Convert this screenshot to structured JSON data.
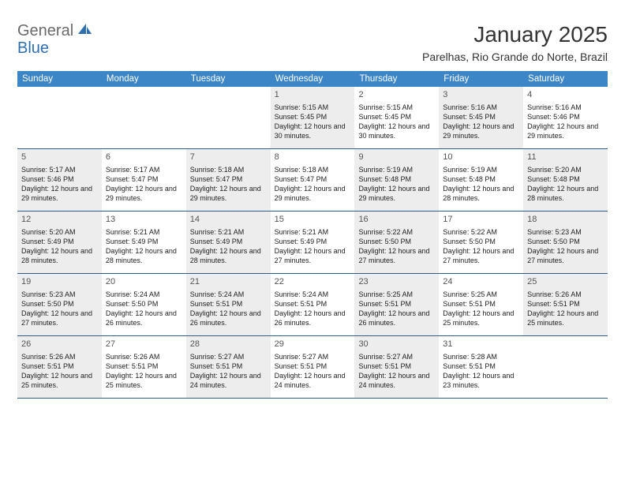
{
  "logo": {
    "part1": "General",
    "part2": "Blue"
  },
  "title": "January 2025",
  "location": "Parelhas, Rio Grande do Norte, Brazil",
  "colors": {
    "header_bg": "#3c85c6",
    "header_text": "#ffffff",
    "row_border": "#2f5b85",
    "shaded_bg": "#ededed",
    "logo_gray": "#6a6a6a",
    "logo_blue": "#2f6fb0"
  },
  "day_names": [
    "Sunday",
    "Monday",
    "Tuesday",
    "Wednesday",
    "Thursday",
    "Friday",
    "Saturday"
  ],
  "weeks": [
    [
      {
        "num": "",
        "shaded": false,
        "lines": []
      },
      {
        "num": "",
        "shaded": false,
        "lines": []
      },
      {
        "num": "",
        "shaded": false,
        "lines": []
      },
      {
        "num": "1",
        "shaded": true,
        "lines": [
          "Sunrise: 5:15 AM",
          "Sunset: 5:45 PM",
          "Daylight: 12 hours and 30 minutes."
        ]
      },
      {
        "num": "2",
        "shaded": false,
        "lines": [
          "Sunrise: 5:15 AM",
          "Sunset: 5:45 PM",
          "Daylight: 12 hours and 30 minutes."
        ]
      },
      {
        "num": "3",
        "shaded": true,
        "lines": [
          "Sunrise: 5:16 AM",
          "Sunset: 5:45 PM",
          "Daylight: 12 hours and 29 minutes."
        ]
      },
      {
        "num": "4",
        "shaded": false,
        "lines": [
          "Sunrise: 5:16 AM",
          "Sunset: 5:46 PM",
          "Daylight: 12 hours and 29 minutes."
        ]
      }
    ],
    [
      {
        "num": "5",
        "shaded": true,
        "lines": [
          "Sunrise: 5:17 AM",
          "Sunset: 5:46 PM",
          "Daylight: 12 hours and 29 minutes."
        ]
      },
      {
        "num": "6",
        "shaded": false,
        "lines": [
          "Sunrise: 5:17 AM",
          "Sunset: 5:47 PM",
          "Daylight: 12 hours and 29 minutes."
        ]
      },
      {
        "num": "7",
        "shaded": true,
        "lines": [
          "Sunrise: 5:18 AM",
          "Sunset: 5:47 PM",
          "Daylight: 12 hours and 29 minutes."
        ]
      },
      {
        "num": "8",
        "shaded": false,
        "lines": [
          "Sunrise: 5:18 AM",
          "Sunset: 5:47 PM",
          "Daylight: 12 hours and 29 minutes."
        ]
      },
      {
        "num": "9",
        "shaded": true,
        "lines": [
          "Sunrise: 5:19 AM",
          "Sunset: 5:48 PM",
          "Daylight: 12 hours and 29 minutes."
        ]
      },
      {
        "num": "10",
        "shaded": false,
        "lines": [
          "Sunrise: 5:19 AM",
          "Sunset: 5:48 PM",
          "Daylight: 12 hours and 28 minutes."
        ]
      },
      {
        "num": "11",
        "shaded": true,
        "lines": [
          "Sunrise: 5:20 AM",
          "Sunset: 5:48 PM",
          "Daylight: 12 hours and 28 minutes."
        ]
      }
    ],
    [
      {
        "num": "12",
        "shaded": true,
        "lines": [
          "Sunrise: 5:20 AM",
          "Sunset: 5:49 PM",
          "Daylight: 12 hours and 28 minutes."
        ]
      },
      {
        "num": "13",
        "shaded": false,
        "lines": [
          "Sunrise: 5:21 AM",
          "Sunset: 5:49 PM",
          "Daylight: 12 hours and 28 minutes."
        ]
      },
      {
        "num": "14",
        "shaded": true,
        "lines": [
          "Sunrise: 5:21 AM",
          "Sunset: 5:49 PM",
          "Daylight: 12 hours and 28 minutes."
        ]
      },
      {
        "num": "15",
        "shaded": false,
        "lines": [
          "Sunrise: 5:21 AM",
          "Sunset: 5:49 PM",
          "Daylight: 12 hours and 27 minutes."
        ]
      },
      {
        "num": "16",
        "shaded": true,
        "lines": [
          "Sunrise: 5:22 AM",
          "Sunset: 5:50 PM",
          "Daylight: 12 hours and 27 minutes."
        ]
      },
      {
        "num": "17",
        "shaded": false,
        "lines": [
          "Sunrise: 5:22 AM",
          "Sunset: 5:50 PM",
          "Daylight: 12 hours and 27 minutes."
        ]
      },
      {
        "num": "18",
        "shaded": true,
        "lines": [
          "Sunrise: 5:23 AM",
          "Sunset: 5:50 PM",
          "Daylight: 12 hours and 27 minutes."
        ]
      }
    ],
    [
      {
        "num": "19",
        "shaded": true,
        "lines": [
          "Sunrise: 5:23 AM",
          "Sunset: 5:50 PM",
          "Daylight: 12 hours and 27 minutes."
        ]
      },
      {
        "num": "20",
        "shaded": false,
        "lines": [
          "Sunrise: 5:24 AM",
          "Sunset: 5:50 PM",
          "Daylight: 12 hours and 26 minutes."
        ]
      },
      {
        "num": "21",
        "shaded": true,
        "lines": [
          "Sunrise: 5:24 AM",
          "Sunset: 5:51 PM",
          "Daylight: 12 hours and 26 minutes."
        ]
      },
      {
        "num": "22",
        "shaded": false,
        "lines": [
          "Sunrise: 5:24 AM",
          "Sunset: 5:51 PM",
          "Daylight: 12 hours and 26 minutes."
        ]
      },
      {
        "num": "23",
        "shaded": true,
        "lines": [
          "Sunrise: 5:25 AM",
          "Sunset: 5:51 PM",
          "Daylight: 12 hours and 26 minutes."
        ]
      },
      {
        "num": "24",
        "shaded": false,
        "lines": [
          "Sunrise: 5:25 AM",
          "Sunset: 5:51 PM",
          "Daylight: 12 hours and 25 minutes."
        ]
      },
      {
        "num": "25",
        "shaded": true,
        "lines": [
          "Sunrise: 5:26 AM",
          "Sunset: 5:51 PM",
          "Daylight: 12 hours and 25 minutes."
        ]
      }
    ],
    [
      {
        "num": "26",
        "shaded": true,
        "lines": [
          "Sunrise: 5:26 AM",
          "Sunset: 5:51 PM",
          "Daylight: 12 hours and 25 minutes."
        ]
      },
      {
        "num": "27",
        "shaded": false,
        "lines": [
          "Sunrise: 5:26 AM",
          "Sunset: 5:51 PM",
          "Daylight: 12 hours and 25 minutes."
        ]
      },
      {
        "num": "28",
        "shaded": true,
        "lines": [
          "Sunrise: 5:27 AM",
          "Sunset: 5:51 PM",
          "Daylight: 12 hours and 24 minutes."
        ]
      },
      {
        "num": "29",
        "shaded": false,
        "lines": [
          "Sunrise: 5:27 AM",
          "Sunset: 5:51 PM",
          "Daylight: 12 hours and 24 minutes."
        ]
      },
      {
        "num": "30",
        "shaded": true,
        "lines": [
          "Sunrise: 5:27 AM",
          "Sunset: 5:51 PM",
          "Daylight: 12 hours and 24 minutes."
        ]
      },
      {
        "num": "31",
        "shaded": false,
        "lines": [
          "Sunrise: 5:28 AM",
          "Sunset: 5:51 PM",
          "Daylight: 12 hours and 23 minutes."
        ]
      },
      {
        "num": "",
        "shaded": false,
        "lines": []
      }
    ]
  ]
}
